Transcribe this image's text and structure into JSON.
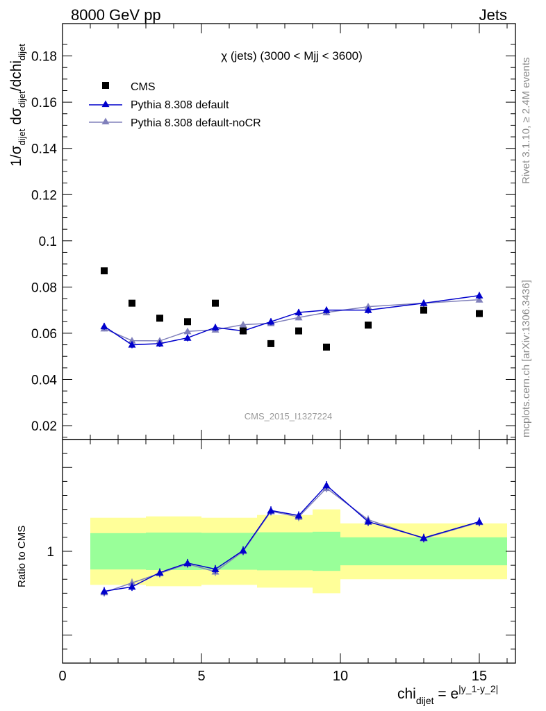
{
  "header": {
    "energy": "8000 GeV pp",
    "process": "Jets"
  },
  "side_labels": {
    "rivet": "Rivet 3.1.10, ≥ 2.4M events",
    "mcplots": "mcplots.cern.ch [arXiv:1306.3436]"
  },
  "colors": {
    "data": "#000000",
    "default": "#0000cc",
    "noCR": "#8080bb",
    "band_inner": "#99ff99",
    "band_outer": "#ffff99"
  },
  "chart_data": [
    {
      "type": "scatter",
      "title": "χ (jets) (3000 < Mjj < 3600)",
      "watermark": "CMS_2015_I1327224",
      "ylabel": "1/σ_dijet dσ_dijet/dchi_dijet",
      "ylim": [
        0.014,
        0.194
      ],
      "yticks": [
        "0.02",
        "0.04",
        "0.06",
        "0.08",
        "0.1",
        "0.12",
        "0.14",
        "0.16",
        "0.18"
      ],
      "xlim": [
        0,
        16.3
      ],
      "legend_position": "top-left",
      "series": [
        {
          "name": "CMS",
          "x": [
            1.5,
            2.5,
            3.5,
            4.5,
            5.5,
            6.5,
            7.5,
            8.5,
            9.5,
            11,
            13,
            15
          ],
          "values": [
            0.087,
            0.073,
            0.0665,
            0.065,
            0.073,
            0.061,
            0.0555,
            0.061,
            0.054,
            0.0635,
            0.07,
            0.0685
          ]
        },
        {
          "name": "Pythia 8.308 default",
          "x": [
            1.5,
            2.5,
            3.5,
            4.5,
            5.5,
            6.5,
            7.5,
            8.5,
            9.5,
            11,
            13,
            15
          ],
          "values": [
            0.063,
            0.055,
            0.0555,
            0.058,
            0.0625,
            0.061,
            0.065,
            0.069,
            0.07,
            0.07,
            0.073,
            0.0763
          ]
        },
        {
          "name": "Pythia 8.308 default-noCR",
          "x": [
            1.5,
            2.5,
            3.5,
            4.5,
            5.5,
            6.5,
            7.5,
            8.5,
            9.5,
            11,
            13,
            15
          ],
          "values": [
            0.062,
            0.0568,
            0.0567,
            0.0608,
            0.0615,
            0.0637,
            0.0643,
            0.0668,
            0.069,
            0.0715,
            0.073,
            0.0745
          ]
        }
      ]
    },
    {
      "type": "line",
      "ylabel": "Ratio to CMS",
      "yticks": [
        "1"
      ],
      "xlabel": "chi_dijet = e^|y_1-y_2|",
      "xticks": [
        "0",
        "5",
        "10",
        "15"
      ],
      "xlim": [
        0,
        16.3
      ],
      "ylim": [
        0.6,
        1.4
      ],
      "bins": [
        [
          1,
          2
        ],
        [
          2,
          3
        ],
        [
          3,
          4
        ],
        [
          4,
          5
        ],
        [
          5,
          6
        ],
        [
          6,
          7
        ],
        [
          7,
          8
        ],
        [
          8,
          9
        ],
        [
          9,
          10
        ],
        [
          10,
          12
        ],
        [
          12,
          14
        ],
        [
          14,
          16
        ]
      ],
      "band_inner": [
        0.065,
        0.065,
        0.067,
        0.067,
        0.066,
        0.066,
        0.068,
        0.068,
        0.07,
        0.05,
        0.05,
        0.05
      ],
      "band_outer": [
        0.12,
        0.12,
        0.125,
        0.125,
        0.12,
        0.12,
        0.13,
        0.13,
        0.15,
        0.1,
        0.1,
        0.1
      ],
      "series": [
        {
          "name": "Pythia 8.308 default",
          "x": [
            1.5,
            2.5,
            3.5,
            4.5,
            5.5,
            6.5,
            7.5,
            8.5,
            9.5,
            11,
            13,
            15
          ],
          "values": [
            0.857,
            0.873,
            0.924,
            0.958,
            0.936,
            1.003,
            1.146,
            1.128,
            1.236,
            1.106,
            1.048,
            1.106
          ]
        },
        {
          "name": "Pythia 8.308 default-noCR",
          "x": [
            1.5,
            2.5,
            3.5,
            4.5,
            5.5,
            6.5,
            7.5,
            8.5,
            9.5,
            11,
            13,
            15
          ],
          "values": [
            0.853,
            0.887,
            0.921,
            0.955,
            0.927,
            1.0,
            1.143,
            1.123,
            1.226,
            1.113,
            1.046,
            1.104
          ]
        }
      ]
    }
  ]
}
